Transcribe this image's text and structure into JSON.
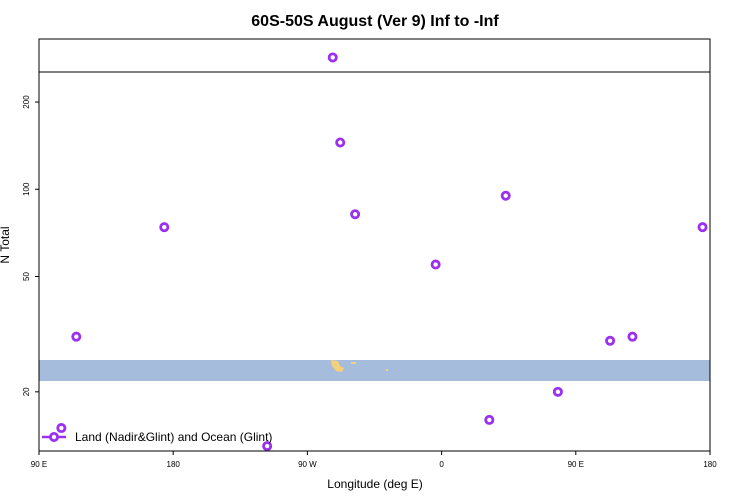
{
  "chart_data": {
    "type": "scatter",
    "title": "60S-50S August (Ver 9)   Inf to -Inf",
    "xlabel": "Longitude (deg E)",
    "ylabel": "N Total",
    "x_tick_labels": [
      "90 E",
      "180",
      "90 W",
      "0",
      "90 E",
      "180"
    ],
    "x_tick_values": [
      90,
      180,
      270,
      360,
      450,
      540
    ],
    "xlim": [
      90,
      540
    ],
    "y_scale": "log",
    "y_tick_labels": [
      "20",
      "50",
      "100",
      "200"
    ],
    "y_tick_values": [
      20,
      50,
      100,
      200
    ],
    "ylim": [
      12.5,
      330
    ],
    "grid": false,
    "legend_position": "bottom-left",
    "series": [
      {
        "name": "Land (Nadir&Glint) and Ocean (Glint)",
        "color": "#9b30f0",
        "x": [
          105,
          115,
          174,
          243,
          287,
          292,
          302,
          356,
          392,
          403,
          438,
          473,
          488,
          535
        ],
        "y": [
          15,
          31,
          74,
          13,
          285,
          145,
          82,
          55,
          16,
          95,
          20,
          30,
          31,
          74
        ]
      }
    ],
    "background": {
      "band": {
        "type": "latitude-band",
        "color": "#a5bcdc"
      },
      "land_color": "#f5d07a"
    }
  }
}
